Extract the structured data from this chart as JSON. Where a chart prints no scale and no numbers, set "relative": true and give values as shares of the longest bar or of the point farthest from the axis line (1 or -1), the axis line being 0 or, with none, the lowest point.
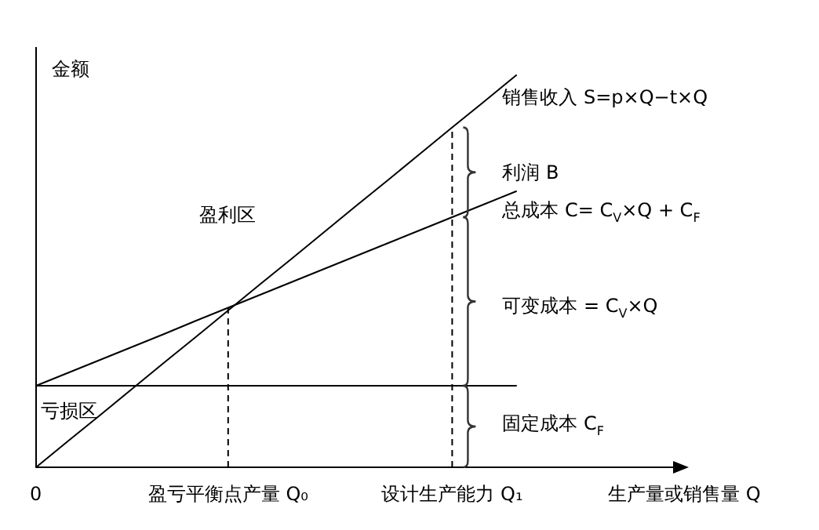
{
  "chart_data": {
    "type": "line",
    "relative": true,
    "xlabel": "生产量或销售量 Q",
    "ylabel": "金额",
    "categories": [
      "0",
      null,
      null,
      null,
      null,
      null,
      "盈亏平衡点产量 Q₀",
      null,
      null,
      null,
      null,
      null,
      null,
      "设计生产能力 Q₁",
      null,
      null,
      null,
      null,
      null,
      null,
      null
    ],
    "series": [
      {
        "name": "销售收入 S=p×Q−t×Q",
        "color": "#000000",
        "values": [
          0,
          0.067,
          0.133,
          0.2,
          0.267,
          0.333,
          0.4,
          0.467,
          0.533,
          0.6,
          0.667,
          0.733,
          0.8,
          0.867,
          0.933,
          1.0,
          null,
          null,
          null,
          null,
          null
        ]
      },
      {
        "name": "总成本 C= C$_{V}$×Q + C$_{F}$",
        "color": "#000000",
        "values": [
          0.208,
          0.241,
          0.274,
          0.307,
          0.34,
          0.374,
          0.407,
          0.44,
          0.473,
          0.506,
          0.539,
          0.572,
          0.605,
          0.638,
          0.671,
          0.704,
          null,
          null,
          null,
          null,
          null
        ]
      },
      {
        "color": "#000000",
        "values": [
          0.208,
          0.208,
          0.208,
          0.208,
          0.208,
          0.208,
          0.208,
          0.208,
          0.208,
          0.208,
          0.208,
          0.208,
          0.208,
          0.208,
          0.208,
          0.208,
          null,
          null,
          null,
          null,
          null
        ]
      }
    ],
    "ref_lines": [
      {
        "axis": "x",
        "value": "盈亏平衡点产量 Q₀",
        "line_style": "dashed"
      },
      {
        "axis": "x",
        "value": "设计生产能力 Q₁",
        "line_style": "dashed"
      }
    ],
    "annotations": [
      "利润 B",
      "可变成本 = C$_{V}$×Q",
      "固定成本 C$_{F}$",
      "盈利区",
      "亏损区"
    ],
    "legend": false,
    "grid": false,
    "marker": "none",
    "line_style": "solid"
  }
}
